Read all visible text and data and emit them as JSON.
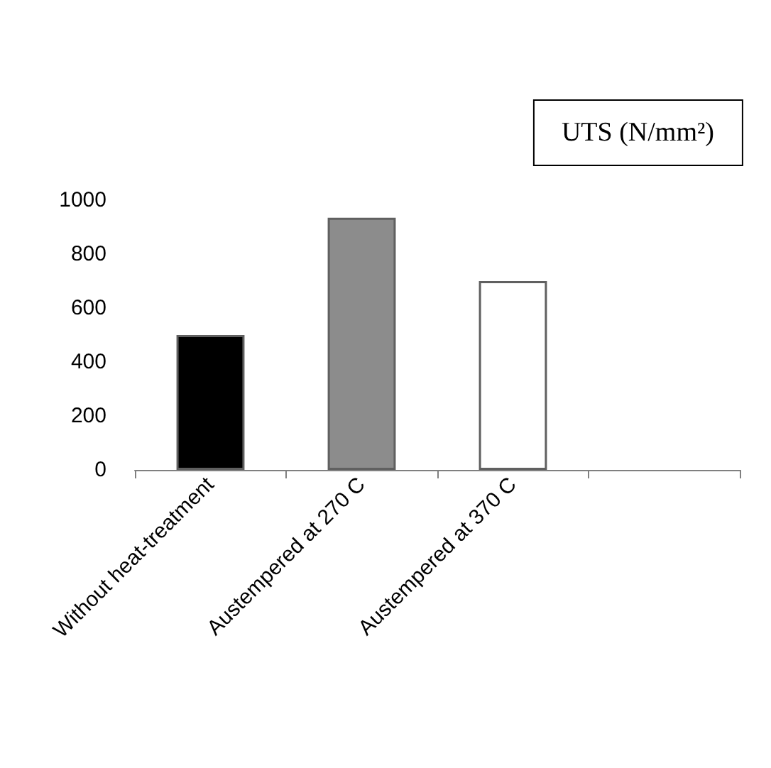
{
  "chart_data": {
    "type": "bar",
    "title": "UTS (N/mm²)",
    "categories": [
      "Without heat-treatment",
      "Austempered at 270 C",
      "Austempered at 370 C",
      null
    ],
    "values": [
      500,
      935,
      700,
      null
    ],
    "colors": [
      "#000000",
      "#8c8c8c",
      "#ffffff",
      "#ffffff"
    ],
    "ylim": [
      0,
      1000
    ],
    "yticks": [
      0,
      200,
      400,
      600,
      800,
      1000
    ],
    "grid": false
  }
}
